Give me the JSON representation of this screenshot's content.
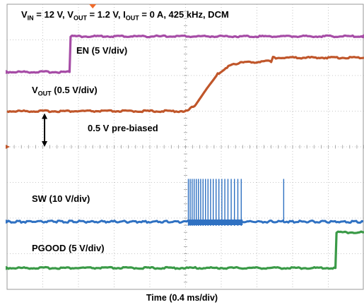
{
  "chart_data": {
    "type": "line",
    "title_parts": [
      "V",
      "IN",
      " = 12 V, V",
      "OUT",
      " = 1.2 V, I",
      "OUT",
      " = 0 A, 425 kHz, DCM"
    ],
    "xlabel": "Time (0.4 ms/div)",
    "x_divisions": 10,
    "y_divisions": 8,
    "grid": true,
    "series": [
      {
        "name": "EN (5 V/div)",
        "color": "#a64ca6",
        "ground_div": 6.1,
        "scale_v_per_div": 5,
        "points": [
          [
            0,
            0
          ],
          [
            1.75,
            0
          ],
          [
            1.78,
            5
          ],
          [
            10,
            5
          ]
        ]
      },
      {
        "name_parts": [
          "V",
          "OUT",
          " (0.5 V/div)"
        ],
        "color": "#c0562a",
        "ground_div": 4.0,
        "scale_v_per_div": 0.5,
        "points": [
          [
            0,
            0.5
          ],
          [
            5.05,
            0.5
          ],
          [
            5.3,
            0.6
          ],
          [
            5.6,
            0.82
          ],
          [
            5.9,
            1.02
          ],
          [
            6.2,
            1.13
          ],
          [
            6.5,
            1.18
          ],
          [
            7.4,
            1.2
          ],
          [
            7.45,
            1.25
          ],
          [
            10,
            1.25
          ]
        ]
      },
      {
        "name": "SW (10 V/div)",
        "color": "#2f71c2",
        "ground_div": 1.9,
        "scale_v_per_div": 10,
        "burst_start_div": 5.08,
        "burst_end_div": 6.6,
        "burst_peak_v": 12,
        "extra_pulse_div": 7.75
      },
      {
        "name": "PGOOD (5 V/div)",
        "color": "#3a9a47",
        "ground_div": 0.6,
        "scale_v_per_div": 5,
        "points": [
          [
            0,
            0
          ],
          [
            9.2,
            0
          ],
          [
            9.23,
            5
          ],
          [
            10,
            5
          ]
        ]
      }
    ],
    "annotations": [
      {
        "text": "0.5 V pre-biased",
        "type": "double-arrow"
      }
    ]
  }
}
